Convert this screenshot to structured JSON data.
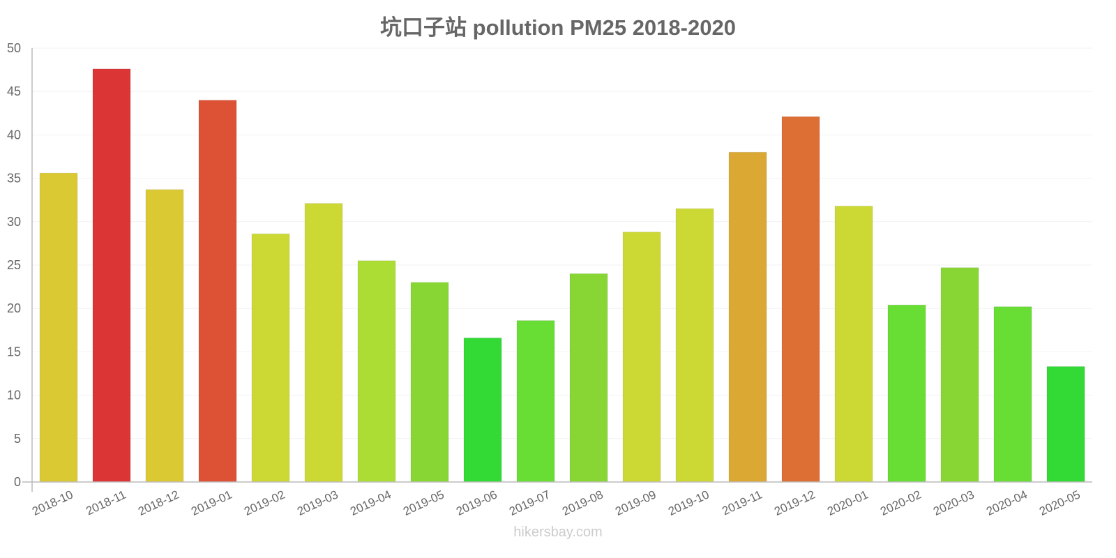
{
  "title": "坑口子站 pollution PM25 2018-2020",
  "footer": "hikersbay.com",
  "chart_data": {
    "type": "bar",
    "title": "坑口子站 pollution PM25 2018-2020",
    "xlabel": "",
    "ylabel": "",
    "ylim": [
      0,
      50
    ],
    "yticks": [
      0,
      5,
      10,
      15,
      20,
      25,
      30,
      35,
      40,
      45,
      50
    ],
    "grid": true,
    "legend": null,
    "categories": [
      "2018-10",
      "2018-11",
      "2018-12",
      "2019-01",
      "2019-02",
      "2019-03",
      "2019-04",
      "2019-05",
      "2019-06",
      "2019-07",
      "2019-08",
      "2019-09",
      "2019-10",
      "2019-11",
      "2019-12",
      "2020-01",
      "2020-02",
      "2020-03",
      "2020-04",
      "2020-05"
    ],
    "values": [
      35.6,
      47.6,
      33.7,
      44.0,
      28.6,
      32.1,
      25.5,
      23.0,
      16.6,
      18.6,
      24.0,
      28.8,
      31.5,
      38.0,
      42.1,
      31.8,
      20.4,
      24.7,
      20.2,
      13.3
    ],
    "colors": [
      "#dbc934",
      "#dc3535",
      "#dbc934",
      "#dd5134",
      "#ccd934",
      "#ccd934",
      "#acdd34",
      "#87d634",
      "#33d935",
      "#68dd34",
      "#87d634",
      "#ccd934",
      "#ccd934",
      "#dba834",
      "#dd6e34",
      "#ccd934",
      "#68dd34",
      "#87d634",
      "#68dd34",
      "#33d935"
    ]
  },
  "colors": {
    "axis": "#bbbbbb",
    "grid": "#f2f2f2",
    "text": "#666666",
    "watermark": "#cccccc"
  }
}
